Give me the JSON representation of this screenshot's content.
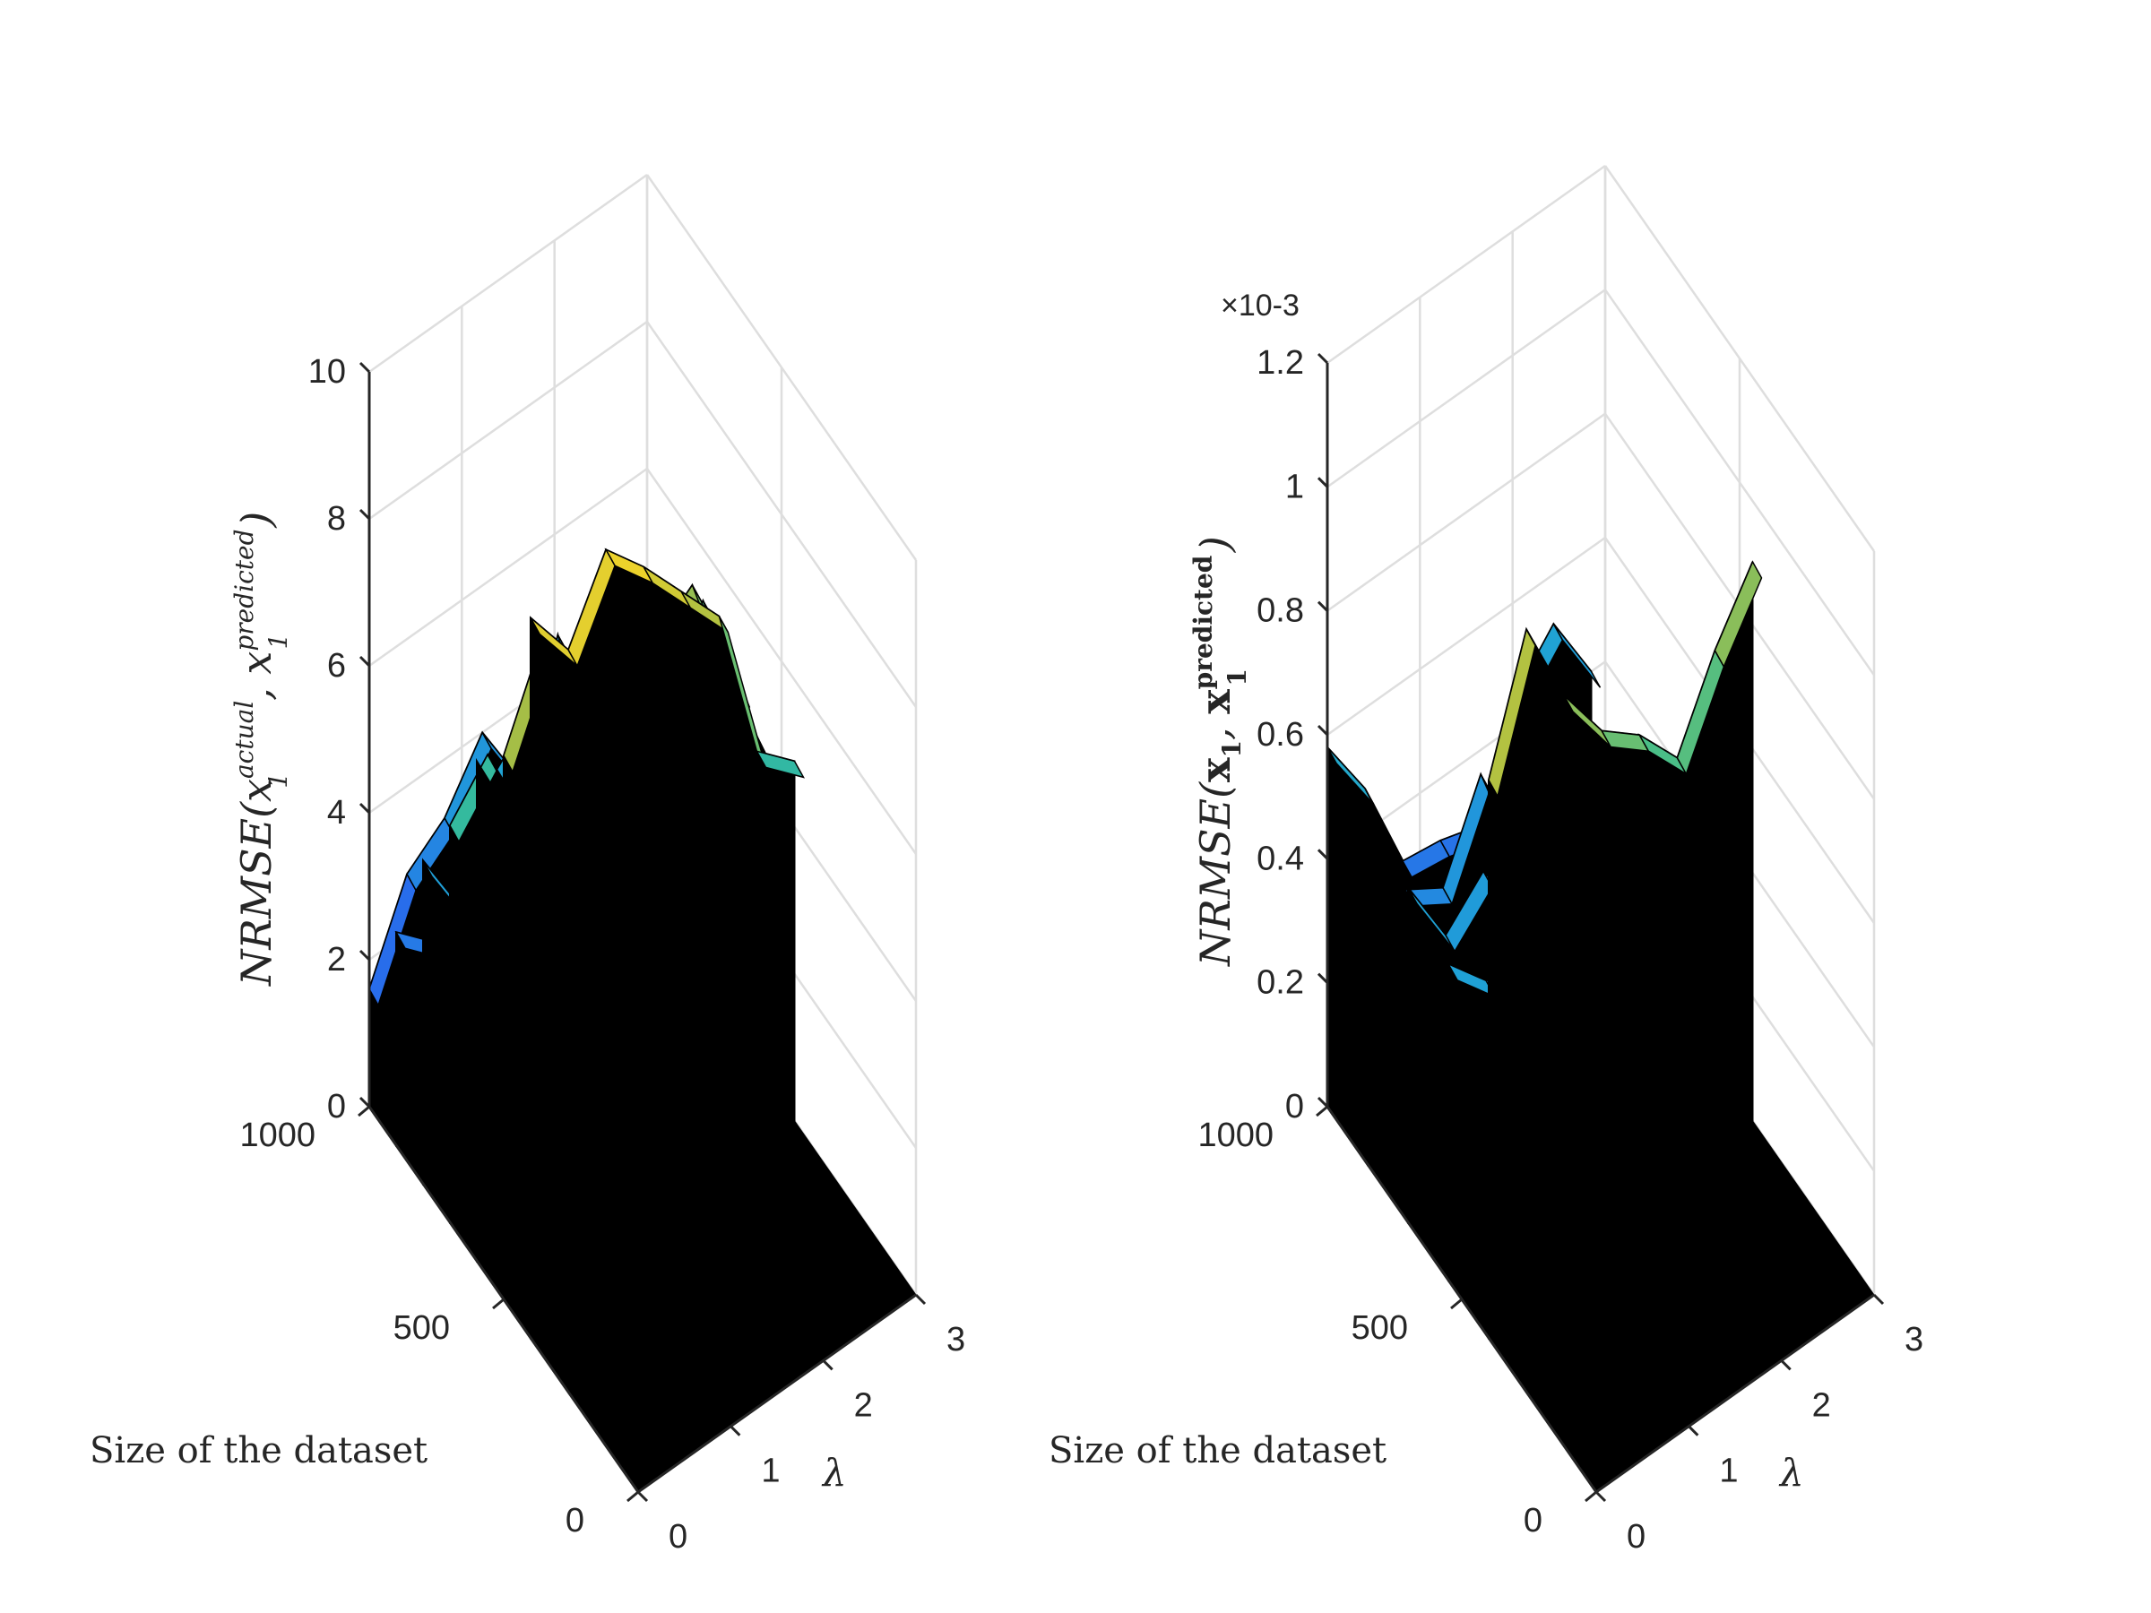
{
  "chart_data": [
    {
      "type": "surface",
      "title": "",
      "xlabel": "λ",
      "ylabel": "Size of the dataset",
      "zlabel": "NRMSE(x1^actual, x1^predicted)",
      "xlim": [
        0,
        3
      ],
      "ylim": [
        0,
        1000
      ],
      "zlim": [
        0,
        10
      ],
      "xticks": [
        "0",
        "1",
        "2",
        "3"
      ],
      "yticks": [
        "0",
        "500",
        "1000"
      ],
      "zticks": [
        "0",
        "2",
        "4",
        "6",
        "8",
        "10"
      ],
      "exponent_label": "",
      "grid": true,
      "colormap": "parula",
      "colors": {
        "low": "#3d26a8",
        "mid": "#1fa2d6",
        "high": "#f5c231",
        "edge": "#000000"
      },
      "ridges": [
        {
          "y": 1000,
          "values": [
            1.6,
            2.8,
            3.2,
            4.0,
            3.0,
            4.6,
            2.4,
            1.2
          ]
        },
        {
          "y": 900,
          "values": [
            2.9,
            2.4,
            3.8,
            4.3,
            5.2,
            4.1,
            3.5,
            2.0
          ]
        },
        {
          "y": 800,
          "values": [
            4.4,
            3.4,
            2.9,
            4.9,
            3.7,
            5.9,
            3.2,
            1.6
          ]
        },
        {
          "y": 700,
          "values": [
            5.4,
            6.0,
            4.8,
            6.4,
            5.0,
            6.8,
            4.6,
            3.0
          ]
        },
        {
          "y": 600,
          "values": [
            6.8,
            5.6,
            7.1,
            6.2,
            7.4,
            6.0,
            6.8,
            5.2
          ]
        },
        {
          "y": 500,
          "values": [
            7.4,
            8.6,
            7.0,
            8.2,
            7.5,
            7.9,
            6.2,
            4.8
          ]
        },
        {
          "y": 400,
          "values": [
            9.8,
            9.0,
            10.0,
            9.4,
            8.7,
            8.0,
            5.8,
            5.3
          ]
        }
      ]
    },
    {
      "type": "surface",
      "title": "",
      "xlabel": "λ",
      "ylabel": "Size of the dataset",
      "zlabel": "NRMSE(x1, x1^predicted)",
      "xlim": [
        0,
        3
      ],
      "ylim": [
        0,
        1000
      ],
      "zlim": [
        0,
        0.0012
      ],
      "xticks": [
        "0",
        "1",
        "2",
        "3"
      ],
      "yticks": [
        "0",
        "500",
        "1000"
      ],
      "zticks": [
        "0",
        "0.2",
        "0.4",
        "0.6",
        "0.8",
        "1",
        "1.2"
      ],
      "exponent_label": "×10-3",
      "grid": true,
      "colormap": "parula",
      "colors": {
        "low": "#3d26a8",
        "mid": "#1fa2d6",
        "high": "#f5c231",
        "edge": "#000000"
      },
      "ridges": [
        {
          "y": 1000,
          "values": [
            0.00058,
            0.00047,
            0.00031,
            0.0003,
            0.00028,
            0.00045,
            0.00052,
            0.0004
          ]
        },
        {
          "y": 850,
          "values": [
            0.00056,
            0.0004,
            0.00036,
            0.0005,
            0.00032,
            0.00046,
            0.00038,
            0.00035
          ]
        },
        {
          "y": 700,
          "values": [
            0.00054,
            0.00042,
            0.00048,
            0.00037,
            0.00046,
            0.00041,
            0.0005,
            0.00036
          ]
        },
        {
          "y": 550,
          "values": [
            0.00051,
            0.00044,
            0.0004,
            0.00047,
            0.00039,
            0.00052,
            0.00043,
            0.00041
          ]
        },
        {
          "y": 400,
          "values": [
            0.0009,
            0.0011,
            0.00095,
            0.00085,
            0.0008,
            0.00072,
            0.00085,
            0.00095
          ]
        }
      ]
    }
  ],
  "axes": [
    {
      "z_label_parts": {
        "fn": "NRMSE(",
        "a": "x",
        "a_sub": "1",
        "a_sup": "actual",
        "b": "x",
        "b_sub": "1",
        "b_sup": "predicted",
        "close": ")"
      },
      "x_label": "λ",
      "y_label": "Size of the dataset"
    },
    {
      "z_label_parts": {
        "fn": "NRMSE(",
        "a": "x",
        "a_sub": "1",
        "a_sup": "",
        "b": "x",
        "b_sub": "1",
        "b_sup": "predicted",
        "close": ")"
      },
      "x_label": "λ",
      "y_label": "Size of the dataset"
    }
  ]
}
